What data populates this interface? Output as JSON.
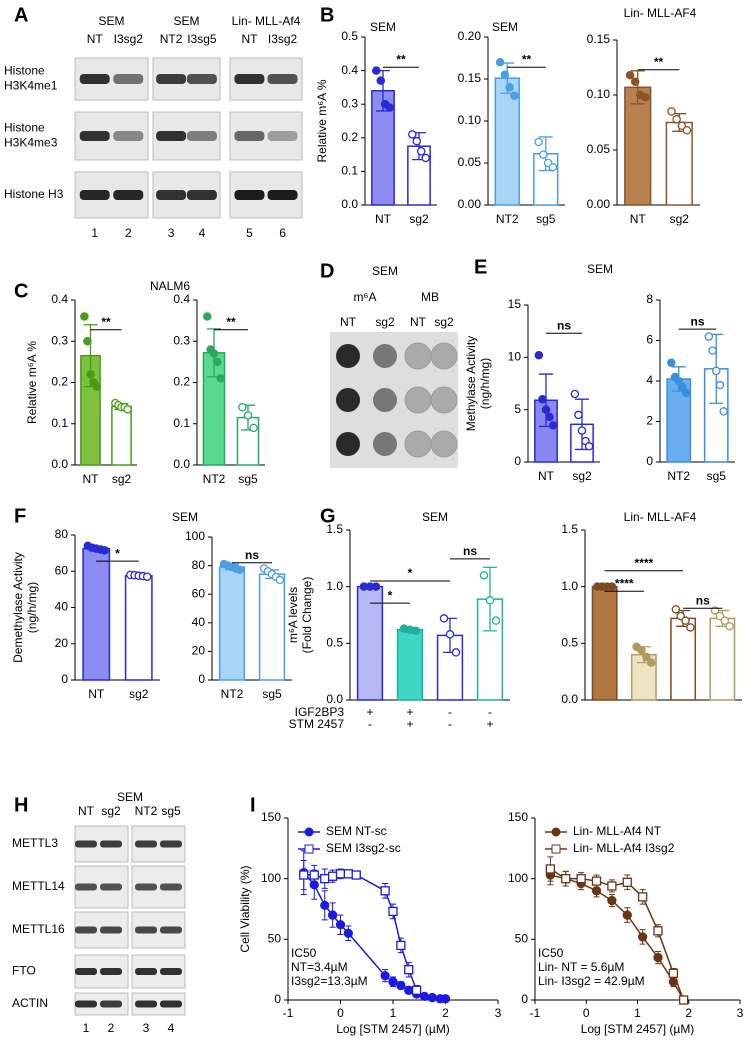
{
  "panels": [
    "A",
    "B",
    "C",
    "D",
    "E",
    "F",
    "G",
    "H",
    "I"
  ],
  "blot_a": {
    "groups": [
      "SEM",
      "SEM",
      "Lin- MLL-Af4"
    ],
    "lanes": [
      "NT",
      "I3sg2",
      "NT2",
      "I3sg5",
      "NT",
      "I3sg2"
    ],
    "rows": [
      [
        "Histone",
        "H3K4me1"
      ],
      [
        "Histone",
        "H3K4me3"
      ],
      [
        "Histone H3"
      ]
    ],
    "lane_numbers": [
      "1",
      "2",
      "3",
      "4",
      "5",
      "6"
    ]
  },
  "dot_blot": {
    "title": "SEM",
    "groups": [
      "m⁶A",
      "MB"
    ],
    "lanes": [
      "NT",
      "sg2",
      "NT",
      "sg2"
    ]
  },
  "blot_h": {
    "title": "SEM",
    "lanes": [
      "NT",
      "sg2",
      "NT2",
      "sg5"
    ],
    "rows": [
      "METTL3",
      "METTL14",
      "METTL16",
      "FTO",
      "ACTIN"
    ],
    "lane_numbers": [
      "1",
      "2",
      "3",
      "4"
    ]
  },
  "chart_data": [
    {
      "type": "bar",
      "title": "SEM",
      "ylabel": [
        "Relative m⁶A %"
      ],
      "categories": [
        "NT",
        "sg2"
      ],
      "values": [
        0.34,
        0.175
      ],
      "errors": [
        0.06,
        0.04
      ],
      "points": [
        [
          0.4,
          0.37,
          0.3,
          0.29
        ],
        [
          0.21,
          0.19,
          0.16,
          0.14
        ]
      ],
      "colors": [
        "#8c8cf2",
        "#ffffff"
      ],
      "edgecolors": [
        "#2a2ad4",
        "#2a2ad4"
      ],
      "ylim": [
        0,
        0.5
      ],
      "yticks": [
        {
          "value": 0,
          "label": "0.0"
        },
        0.1,
        0.2,
        0.3,
        0.4,
        0.5
      ],
      "annotations": [
        "**"
      ]
    },
    {
      "type": "bar",
      "title": "SEM",
      "categories": [
        "NT2",
        "sg5"
      ],
      "values": [
        0.151,
        0.061
      ],
      "errors": [
        0.018,
        0.02
      ],
      "points": [
        [
          0.17,
          0.155,
          0.14,
          0.13
        ],
        [
          0.075,
          0.06,
          0.05,
          0.045
        ]
      ],
      "colors": [
        "#a8d4f5",
        "#ffffff"
      ],
      "edgecolors": [
        "#4a9ee6",
        "#4a9ee6"
      ],
      "ylim": [
        0,
        0.2
      ],
      "yticks": [
        {
          "value": 0,
          "label": "0.00"
        },
        0.05,
        {
          "value": 0.1,
          "label": "0.10"
        },
        0.15,
        {
          "value": 0.2,
          "label": "0.20"
        }
      ],
      "annotations": [
        "**"
      ]
    },
    {
      "type": "bar",
      "title": "Lin- MLL-AF4",
      "categories": [
        "NT",
        "sg2"
      ],
      "values": [
        0.107,
        0.075
      ],
      "errors": [
        0.015,
        0.008
      ],
      "points": [
        [
          0.118,
          0.112,
          0.1,
          0.098
        ],
        [
          0.085,
          0.078,
          0.072,
          0.068
        ]
      ],
      "colors": [
        "#b88150",
        "#ffffff"
      ],
      "edgecolors": [
        "#8a5428",
        "#8a5428"
      ],
      "ylim": [
        0,
        0.15
      ],
      "yticks": [
        {
          "value": 0,
          "label": "0.00"
        },
        0.05,
        {
          "value": 0.1,
          "label": "0.10"
        },
        0.15
      ],
      "annotations": [
        "**"
      ]
    },
    {
      "type": "bar",
      "title": "NALM6",
      "ylabel": [
        "Relative m⁶A %"
      ],
      "categories": [
        "NT",
        "sg2"
      ],
      "values": [
        0.265,
        0.142
      ],
      "errors": [
        0.075,
        0.007
      ],
      "points": [
        [
          0.36,
          0.3,
          0.22,
          0.2,
          0.19
        ],
        [
          0.15,
          0.145,
          0.14,
          0.14,
          0.135
        ]
      ],
      "colors": [
        "#80c040",
        "#ffffff"
      ],
      "edgecolors": [
        "#4a9a1a",
        "#4a9a1a"
      ],
      "ylim": [
        0,
        0.4
      ],
      "yticks": [
        {
          "value": 0,
          "label": "0.0"
        },
        0.1,
        0.2,
        0.3,
        0.4
      ],
      "annotations": [
        "**"
      ]
    },
    {
      "type": "bar",
      "categories": [
        "NT2",
        "sg5"
      ],
      "values": [
        0.272,
        0.115
      ],
      "errors": [
        0.058,
        0.03
      ],
      "points": [
        [
          0.36,
          0.28,
          0.27,
          0.25,
          0.21
        ],
        [
          0.14,
          0.12,
          0.09
        ]
      ],
      "colors": [
        "#5ad890",
        "#ffffff"
      ],
      "edgecolors": [
        "#2aa860",
        "#2aa860"
      ],
      "ylim": [
        0,
        0.4
      ],
      "yticks": [
        {
          "value": 0,
          "label": "0.0"
        },
        0.1,
        0.2,
        0.3,
        0.4
      ],
      "annotations": [
        "**"
      ]
    },
    {
      "type": "bar",
      "title": "SEM",
      "ylabel": [
        "Methylase Activity",
        "(ng/h/mg)"
      ],
      "categories": [
        "NT",
        "sg2"
      ],
      "values": [
        5.9,
        3.6
      ],
      "errors": [
        2.5,
        2.4
      ],
      "points": [
        [
          10.2,
          6,
          5,
          4.3,
          3.5
        ],
        [
          6.5,
          4.5,
          3,
          2,
          1.5
        ]
      ],
      "colors": [
        "#8888f0",
        "#ffffff"
      ],
      "edgecolors": [
        "#2a2ad4",
        "#2a2ad4"
      ],
      "ylim": [
        0,
        15
      ],
      "yticks": [
        0,
        5,
        10,
        15
      ],
      "annotations": [
        "ns"
      ]
    },
    {
      "type": "bar",
      "categories": [
        "NT2",
        "sg5"
      ],
      "values": [
        4.1,
        4.6
      ],
      "errors": [
        0.6,
        1.7
      ],
      "points": [
        [
          4.9,
          4.2,
          4.0,
          3.7,
          3.4
        ],
        [
          6.2,
          5.5,
          4.5,
          3.8,
          2.5
        ]
      ],
      "colors": [
        "#6aaef0",
        "#ffffff"
      ],
      "edgecolors": [
        "#3a8ee0",
        "#3a8ee0"
      ],
      "ylim": [
        0,
        8
      ],
      "yticks": [
        0,
        2,
        4,
        6,
        8
      ],
      "annotations": [
        "ns"
      ]
    },
    {
      "type": "bar",
      "title": "SEM",
      "ylabel": [
        "Demethylase Activity",
        "(ng/h/mg)"
      ],
      "categories": [
        "NT",
        "sg2"
      ],
      "values": [
        72.5,
        57.5
      ],
      "errors": [
        1.2,
        0.5
      ],
      "points": [
        [
          74,
          73,
          72.5,
          72,
          71.5
        ],
        [
          58,
          57.8,
          57.5,
          57.3,
          57
        ]
      ],
      "colors": [
        "#8c8cf2",
        "#ffffff"
      ],
      "edgecolors": [
        "#2a2ad4",
        "#2a2ad4"
      ],
      "ylim": [
        0,
        80
      ],
      "yticks": [
        0,
        20,
        40,
        60,
        80
      ],
      "annotations": [
        "*"
      ]
    },
    {
      "type": "bar",
      "categories": [
        "NT2",
        "sg5"
      ],
      "values": [
        79,
        74
      ],
      "errors": [
        2,
        3
      ],
      "points": [
        [
          81,
          80,
          79,
          78,
          77
        ],
        [
          78,
          76,
          74,
          72,
          70
        ]
      ],
      "colors": [
        "#a8d4f5",
        "#ffffff"
      ],
      "edgecolors": [
        "#4a9ee6",
        "#4a9ee6"
      ],
      "ylim": [
        0,
        100
      ],
      "yticks": [
        0,
        20,
        40,
        60,
        80,
        100
      ],
      "annotations": [
        "ns"
      ]
    },
    {
      "type": "bar",
      "title": "SEM",
      "ylabel": [
        "m⁶A levels",
        "(Fold Change)"
      ],
      "categories": [
        null,
        null,
        null,
        null
      ],
      "values": [
        1.0,
        0.62,
        0.57,
        0.89
      ],
      "errors": [
        0.01,
        0.02,
        0.15,
        0.28
      ],
      "points": [
        [
          1,
          1,
          1
        ],
        [
          0.63,
          0.62,
          0.61
        ],
        [
          0.72,
          0.58,
          0.42
        ],
        [
          1.1,
          0.88,
          0.7
        ]
      ],
      "colors": [
        "#b8b8f5",
        "#3fd6c6",
        "#ffffff",
        "#ffffff"
      ],
      "edgecolors": [
        "#2a2ad4",
        "#20b0a0",
        "#2a2ad4",
        "#20b0a0"
      ],
      "ylim": [
        0,
        1.5
      ],
      "yticks": [
        {
          "value": 0,
          "label": "0.0"
        },
        0.5,
        {
          "value": 1,
          "label": "1.0"
        },
        1.5
      ],
      "annotations": [
        "*",
        "*",
        "ns"
      ],
      "row_labels": [
        {
          "name": "IGF2BP3",
          "values": [
            "+",
            "+",
            "-",
            "-"
          ]
        },
        {
          "name": "STM 2457",
          "values": [
            "-",
            "+",
            "-",
            "+"
          ]
        }
      ]
    },
    {
      "type": "bar",
      "title": "Lin- MLL-AF4",
      "categories": [
        null,
        null,
        null,
        null
      ],
      "values": [
        1.0,
        0.4,
        0.72,
        0.72
      ],
      "errors": [
        0.01,
        0.07,
        0.07,
        0.07
      ],
      "points": [
        [
          1,
          1,
          1,
          1
        ],
        [
          0.47,
          0.44,
          0.38,
          0.33
        ],
        [
          0.8,
          0.74,
          0.7,
          0.64
        ],
        [
          0.79,
          0.74,
          0.7,
          0.65
        ]
      ],
      "colors": [
        "#b07840",
        "#ede4c4",
        "#ffffff",
        "#ffffff"
      ],
      "edgecolors": [
        "#7a4a20",
        "#b09a60",
        "#7a4a20",
        "#b09a60"
      ],
      "ylim": [
        0,
        1.5
      ],
      "yticks": [
        {
          "value": 0,
          "label": "0.0"
        },
        0.5,
        {
          "value": 1,
          "label": "1.0"
        },
        1.5
      ],
      "annotations": [
        "****",
        "****",
        "ns"
      ]
    },
    {
      "type": "line",
      "xlabel": "Log [STM 2457] (µM)",
      "ylabel": [
        "Cell Viability (%)"
      ],
      "xlim": [
        -1,
        3
      ],
      "xticks": [
        -1,
        0,
        1,
        2,
        3
      ],
      "ylim": [
        0,
        150
      ],
      "yticks": [
        0,
        50,
        100,
        150
      ],
      "legend": "upper left",
      "annotation": [
        "IC50",
        "NT=3.4µM",
        "I3sg2=13.3µM"
      ],
      "series": [
        {
          "name": "SEM NT-sc",
          "color": "#1a1ae0",
          "marker": "circle",
          "filled": true,
          "x": [
            -0.7,
            -0.5,
            -0.3,
            -0.15,
            0,
            0.15,
            0.85,
            1.0,
            1.15,
            1.3,
            1.45,
            1.6,
            1.75,
            1.9,
            2.0
          ],
          "values": [
            105,
            95,
            78,
            70,
            62,
            55,
            20,
            15,
            12,
            8,
            5,
            3,
            2,
            1,
            1
          ],
          "errors": [
            18,
            12,
            12,
            10,
            8,
            6,
            5,
            4,
            3,
            3,
            2,
            2,
            1,
            1,
            1
          ]
        },
        {
          "name": "SEM I3sg2-sc",
          "color": "#1a1ae0",
          "marker": "square",
          "filled": false,
          "x": [
            -0.7,
            -0.5,
            -0.3,
            -0.15,
            0,
            0.15,
            0.3,
            0.85,
            1.0,
            1.15,
            1.3,
            1.45
          ],
          "values": [
            103,
            103,
            100,
            102,
            104,
            104,
            103,
            90,
            73,
            45,
            25,
            8
          ],
          "errors": [
            12,
            8,
            8,
            5,
            4,
            3,
            3,
            6,
            6,
            6,
            6,
            4
          ]
        }
      ]
    },
    {
      "type": "line",
      "xlabel": "Log [STM 2457] (µM)",
      "xlim": [
        -1,
        3
      ],
      "xticks": [
        -1,
        0,
        1,
        2,
        3
      ],
      "ylim": [
        0,
        150
      ],
      "yticks": [
        0,
        50,
        100,
        150
      ],
      "legend": "upper left",
      "annotation": [
        "IC50",
        "Lin- NT = 5.6µM",
        "Lin- I3sg2 = 42.9µM"
      ],
      "series": [
        {
          "name": "Lin- MLL-Af4 NT",
          "color": "#6b3515",
          "marker": "circle",
          "filled": true,
          "x": [
            -0.7,
            -0.4,
            -0.1,
            0.2,
            0.5,
            0.8,
            1.1,
            1.4,
            1.7,
            1.9
          ],
          "values": [
            103,
            100,
            96,
            90,
            82,
            70,
            52,
            35,
            15,
            0
          ],
          "errors": [
            8,
            6,
            5,
            5,
            5,
            6,
            6,
            5,
            4,
            2
          ]
        },
        {
          "name": "Lin- MLL-Af4 I3sg2",
          "color": "#6b3515",
          "marker": "square",
          "filled": false,
          "x": [
            -0.7,
            -0.4,
            -0.1,
            0.2,
            0.5,
            0.8,
            1.1,
            1.4,
            1.7,
            1.9
          ],
          "values": [
            108,
            100,
            100,
            98,
            94,
            97,
            85,
            57,
            22,
            0
          ],
          "errors": [
            10,
            6,
            5,
            5,
            5,
            6,
            6,
            5,
            4,
            2
          ]
        }
      ]
    }
  ]
}
